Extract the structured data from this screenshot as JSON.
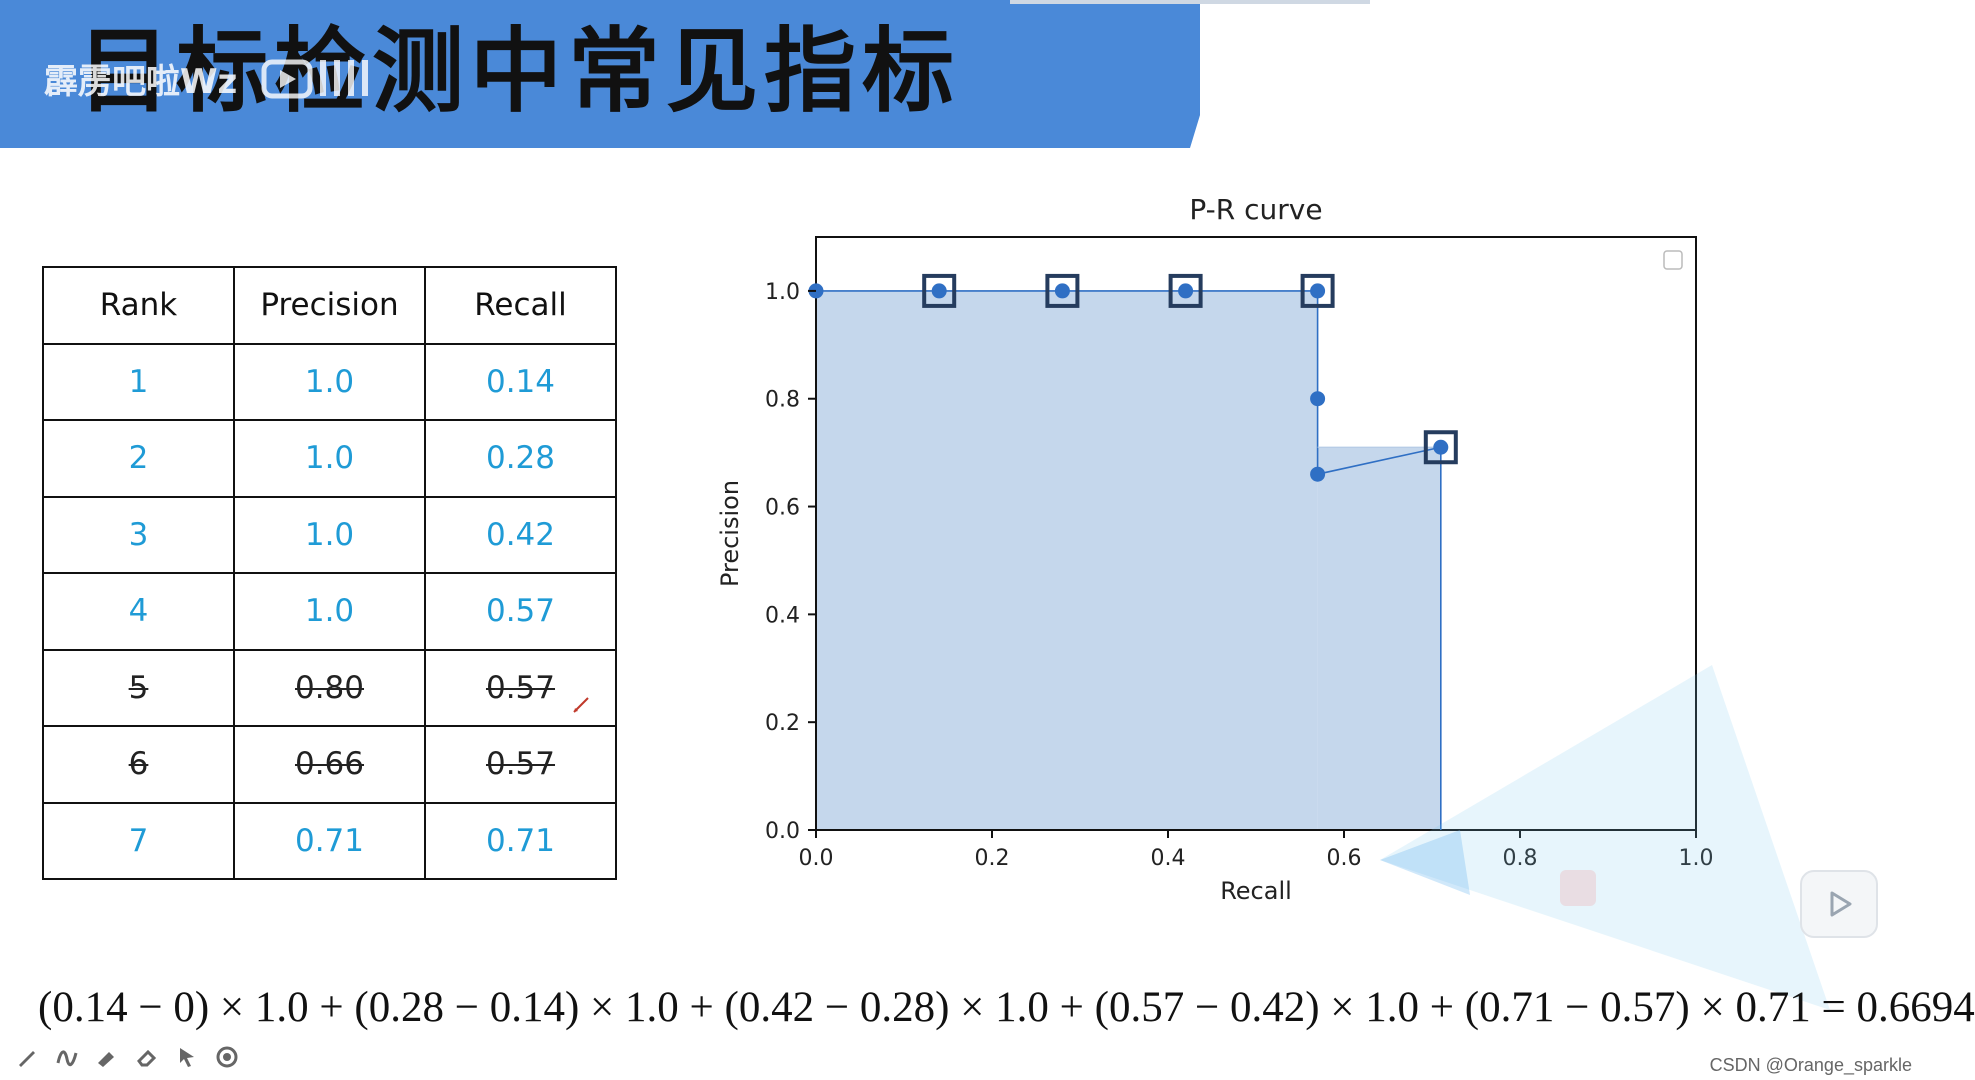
{
  "header": {
    "title": "目标检测中常见指标",
    "watermark": "霹雳吧啦Wz"
  },
  "table": {
    "headers": [
      "Rank",
      "Precision",
      "Recall"
    ],
    "rows": [
      {
        "rank": "1",
        "precision": "1.0",
        "recall": "0.14",
        "struck": false
      },
      {
        "rank": "2",
        "precision": "1.0",
        "recall": "0.28",
        "struck": false
      },
      {
        "rank": "3",
        "precision": "1.0",
        "recall": "0.42",
        "struck": false
      },
      {
        "rank": "4",
        "precision": "1.0",
        "recall": "0.57",
        "struck": false
      },
      {
        "rank": "5",
        "precision": "0.80",
        "recall": "0.57",
        "struck": true
      },
      {
        "rank": "6",
        "precision": "0.66",
        "recall": "0.57",
        "struck": true
      },
      {
        "rank": "7",
        "precision": "0.71",
        "recall": "0.71",
        "struck": false
      }
    ]
  },
  "chart_data": {
    "type": "line",
    "title": "P-R curve",
    "xlabel": "Recall",
    "ylabel": "Precision",
    "xlim": [
      0.0,
      1.0
    ],
    "ylim": [
      0.0,
      1.1
    ],
    "xticks": [
      "0.0",
      "0.2",
      "0.4",
      "0.6",
      "0.8",
      "1.0"
    ],
    "yticks": [
      "0.0",
      "0.2",
      "0.4",
      "0.6",
      "0.8",
      "1.0"
    ],
    "points": [
      {
        "x": 0.0,
        "y": 1.0
      },
      {
        "x": 0.14,
        "y": 1.0
      },
      {
        "x": 0.28,
        "y": 1.0
      },
      {
        "x": 0.42,
        "y": 1.0
      },
      {
        "x": 0.57,
        "y": 1.0
      },
      {
        "x": 0.57,
        "y": 0.8
      },
      {
        "x": 0.57,
        "y": 0.66
      },
      {
        "x": 0.71,
        "y": 0.71
      }
    ],
    "highlighted": [
      {
        "x": 0.14,
        "y": 1.0
      },
      {
        "x": 0.28,
        "y": 1.0
      },
      {
        "x": 0.42,
        "y": 1.0
      },
      {
        "x": 0.57,
        "y": 1.0
      },
      {
        "x": 0.71,
        "y": 0.71
      }
    ],
    "area_steps": [
      {
        "x0": 0.0,
        "x1": 0.57,
        "y": 1.0
      },
      {
        "x0": 0.57,
        "x1": 0.71,
        "y": 0.71
      }
    ],
    "colors": {
      "line": "#2f6fc4",
      "fill": "#c5d7ec",
      "box": "#253c5e"
    },
    "grid": false
  },
  "formula": "(0.14 − 0) × 1.0 + (0.28 − 0.14) × 1.0 + (0.42 − 0.28) × 1.0 + (0.57 − 0.42) × 1.0 + (0.71 − 0.57) × 0.71 = 0.6694",
  "credit": "CSDN @Orange_sparkle",
  "toolbar": {
    "icons": [
      "pen-icon",
      "curve-icon",
      "highlighter-icon",
      "eraser-icon",
      "pointer-icon",
      "record-icon"
    ]
  }
}
